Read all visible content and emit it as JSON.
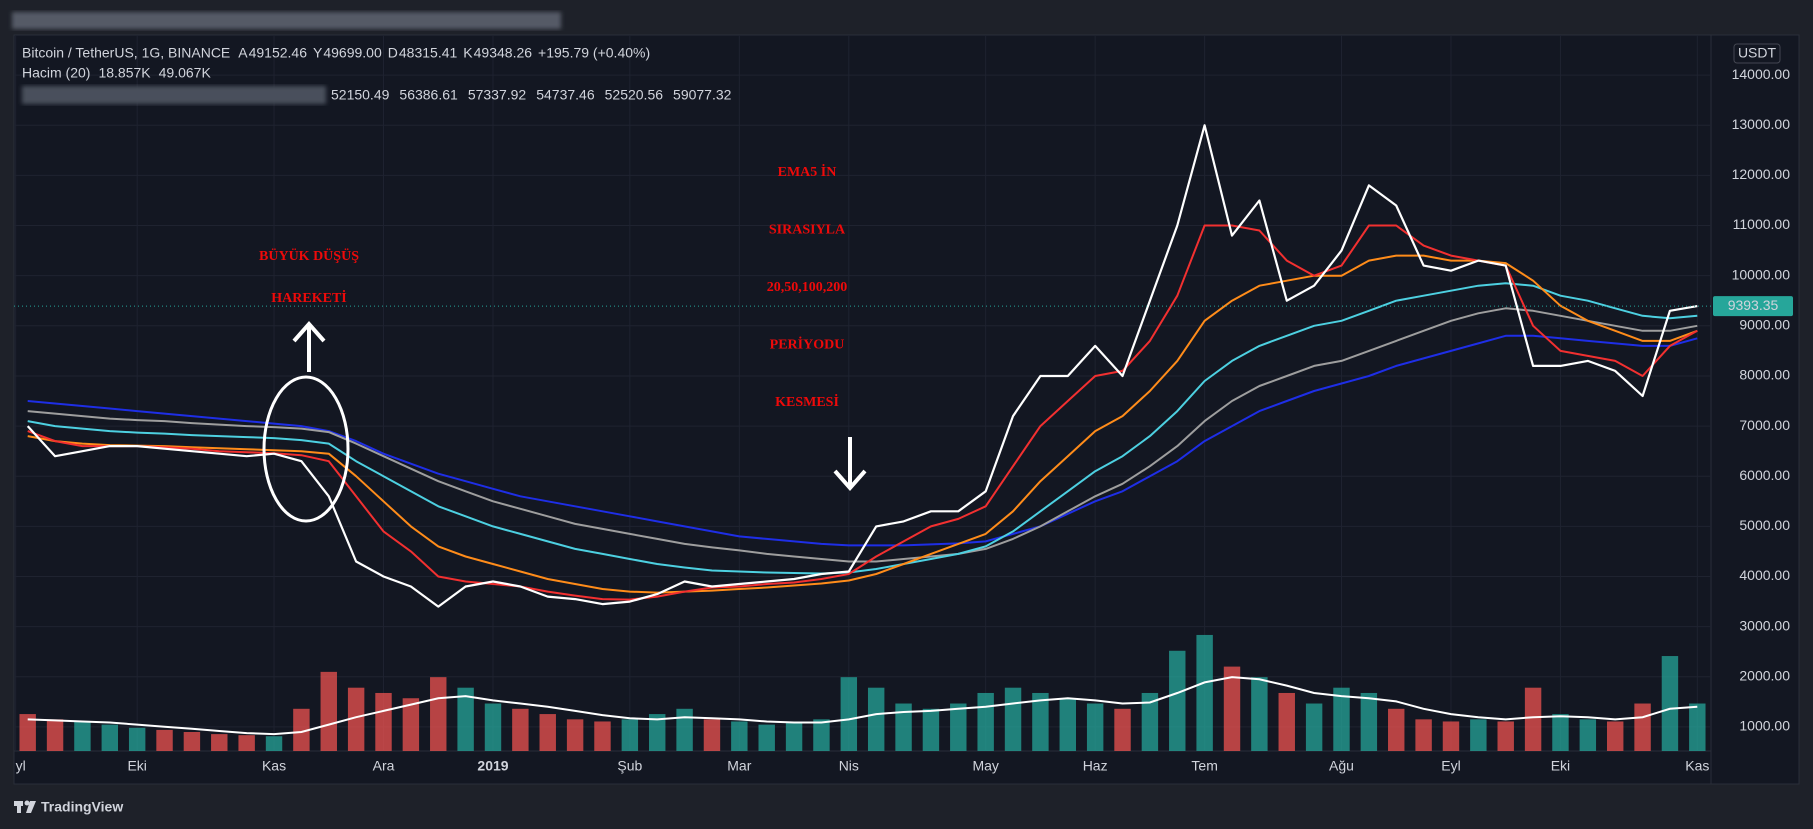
{
  "header": {
    "symbol": "Bitcoin / TetherUS, 1G, BINANCE",
    "ohlc": [
      {
        "label": "A",
        "value": "49152.46"
      },
      {
        "label": "Y",
        "value": "49699.00"
      },
      {
        "label": "D",
        "value": "48315.41"
      },
      {
        "label": "K",
        "value": "49348.26"
      }
    ],
    "change": "+195.79 (+0.40%)",
    "volume_label": "Hacim (20)",
    "volume_values": [
      "18.857K",
      "49.067K"
    ],
    "ma_values": [
      "52150.49",
      "56386.61",
      "57337.92",
      "54737.46",
      "52520.56",
      "59077.32"
    ]
  },
  "chart_data": {
    "type": "line",
    "currency": "USDT",
    "categories": [
      "yl",
      null,
      null,
      null,
      "Eki",
      null,
      null,
      null,
      null,
      "Kas",
      null,
      null,
      null,
      "Ara",
      null,
      null,
      null,
      "2019",
      null,
      null,
      null,
      null,
      "Şub",
      null,
      null,
      null,
      "Mar",
      null,
      null,
      null,
      "Nis",
      null,
      null,
      null,
      null,
      "May",
      null,
      null,
      null,
      "Haz",
      null,
      null,
      null,
      "Tem",
      null,
      null,
      null,
      null,
      "Ağu",
      null,
      null,
      null,
      "Eyl",
      null,
      null,
      null,
      "Eki",
      null,
      null,
      null,
      null,
      "Kas"
    ],
    "series": [
      {
        "color": "#ffffff",
        "values": [
          7000,
          6400,
          6500,
          6600,
          6600,
          6550,
          6500,
          6450,
          6400,
          6450,
          6300,
          5600,
          4300,
          4000,
          3800,
          3400,
          3800,
          3900,
          3800,
          3600,
          3550,
          3450,
          3500,
          3650,
          3900,
          3800,
          3850,
          3900,
          3950,
          4050,
          4100,
          5000,
          5100,
          5300,
          5300,
          5700,
          7200,
          8000,
          8000,
          8600,
          8000,
          9500,
          11000,
          13000,
          10800,
          11500,
          9500,
          9800,
          10500,
          11800,
          11400,
          10200,
          10100,
          10300,
          10200,
          8200,
          8200,
          8300,
          8100,
          7600,
          9300,
          9393.35
        ]
      },
      {
        "color": "#f23030",
        "values": [
          6900,
          6700,
          6600,
          6600,
          6600,
          6580,
          6550,
          6500,
          6480,
          6460,
          6420,
          6300,
          5600,
          4900,
          4500,
          4000,
          3900,
          3850,
          3800,
          3700,
          3620,
          3550,
          3540,
          3600,
          3700,
          3780,
          3800,
          3850,
          3880,
          3950,
          4050,
          4400,
          4700,
          5000,
          5150,
          5400,
          6200,
          7000,
          7500,
          8000,
          8100,
          8700,
          9600,
          11000,
          11000,
          10900,
          10300,
          10000,
          10200,
          11000,
          11000,
          10600,
          10400,
          10300,
          10200,
          9000,
          8500,
          8400,
          8300,
          8000,
          8600,
          8900
        ]
      },
      {
        "color": "#ff8c1a",
        "values": [
          6800,
          6700,
          6650,
          6620,
          6610,
          6600,
          6580,
          6560,
          6540,
          6520,
          6500,
          6450,
          6000,
          5500,
          5000,
          4600,
          4400,
          4250,
          4100,
          3950,
          3850,
          3750,
          3700,
          3680,
          3700,
          3720,
          3750,
          3780,
          3820,
          3860,
          3920,
          4050,
          4250,
          4450,
          4650,
          4850,
          5300,
          5900,
          6400,
          6900,
          7200,
          7700,
          8300,
          9100,
          9500,
          9800,
          9900,
          10000,
          10000,
          10300,
          10400,
          10400,
          10300,
          10300,
          10250,
          9900,
          9400,
          9100,
          8900,
          8700,
          8700,
          8900
        ]
      },
      {
        "color": "#4dd0e1",
        "values": [
          7100,
          7000,
          6950,
          6900,
          6870,
          6850,
          6820,
          6800,
          6780,
          6760,
          6720,
          6650,
          6300,
          6000,
          5700,
          5400,
          5200,
          5000,
          4850,
          4700,
          4550,
          4450,
          4350,
          4250,
          4180,
          4120,
          4100,
          4080,
          4070,
          4060,
          4080,
          4150,
          4250,
          4350,
          4450,
          4600,
          4900,
          5300,
          5700,
          6100,
          6400,
          6800,
          7300,
          7900,
          8300,
          8600,
          8800,
          9000,
          9100,
          9300,
          9500,
          9600,
          9700,
          9800,
          9850,
          9800,
          9600,
          9500,
          9350,
          9200,
          9150,
          9200
        ]
      },
      {
        "color": "#9e9e9e",
        "values": [
          7300,
          7250,
          7200,
          7150,
          7120,
          7100,
          7060,
          7030,
          7000,
          6980,
          6950,
          6880,
          6650,
          6400,
          6150,
          5900,
          5700,
          5500,
          5350,
          5200,
          5050,
          4950,
          4850,
          4750,
          4650,
          4580,
          4520,
          4450,
          4400,
          4350,
          4300,
          4300,
          4350,
          4400,
          4450,
          4550,
          4750,
          5000,
          5300,
          5600,
          5850,
          6200,
          6600,
          7100,
          7500,
          7800,
          8000,
          8200,
          8300,
          8500,
          8700,
          8900,
          9100,
          9250,
          9350,
          9300,
          9200,
          9100,
          9000,
          8900,
          8900,
          9000
        ]
      },
      {
        "color": "#1e2ee6",
        "values": [
          7500,
          7450,
          7400,
          7350,
          7300,
          7250,
          7200,
          7150,
          7100,
          7050,
          7000,
          6900,
          6700,
          6450,
          6250,
          6050,
          5900,
          5750,
          5600,
          5500,
          5400,
          5300,
          5200,
          5100,
          5000,
          4900,
          4800,
          4750,
          4700,
          4650,
          4620,
          4620,
          4620,
          4640,
          4660,
          4700,
          4850,
          5000,
          5250,
          5500,
          5700,
          6000,
          6300,
          6700,
          7000,
          7300,
          7500,
          7700,
          7850,
          8000,
          8200,
          8350,
          8500,
          8650,
          8800,
          8800,
          8750,
          8700,
          8650,
          8600,
          8600,
          8750
        ]
      }
    ],
    "volume": {
      "up_color": "#26a69a",
      "down_color": "#ef5350",
      "ma_color": "#ffffff",
      "ylim": [
        0,
        200
      ],
      "values": [
        35,
        30,
        28,
        25,
        22,
        20,
        18,
        16,
        15,
        14,
        40,
        75,
        60,
        55,
        50,
        70,
        60,
        45,
        40,
        35,
        30,
        28,
        30,
        35,
        40,
        30,
        28,
        25,
        27,
        30,
        70,
        60,
        45,
        40,
        45,
        55,
        60,
        55,
        50,
        45,
        40,
        55,
        95,
        110,
        80,
        70,
        55,
        45,
        60,
        55,
        40,
        30,
        28,
        30,
        28,
        60,
        35,
        30,
        28,
        45,
        90,
        45
      ],
      "ma": [
        30,
        29,
        28,
        27,
        25,
        23,
        21,
        19,
        17,
        16,
        18,
        25,
        32,
        38,
        44,
        50,
        52,
        48,
        45,
        42,
        38,
        34,
        31,
        30,
        32,
        31,
        30,
        28,
        27,
        27,
        30,
        35,
        37,
        38,
        40,
        42,
        45,
        48,
        50,
        48,
        45,
        46,
        55,
        65,
        70,
        68,
        62,
        55,
        52,
        50,
        47,
        40,
        35,
        32,
        30,
        32,
        33,
        32,
        30,
        32,
        40,
        42
      ]
    },
    "ylim": [
      520,
      14800
    ],
    "yticks": [
      {
        "value": 1000,
        "label": "1000.00"
      },
      {
        "value": 2000,
        "label": "2000.00"
      },
      {
        "value": 3000,
        "label": "3000.00"
      },
      {
        "value": 4000,
        "label": "4000.00"
      },
      {
        "value": 5000,
        "label": "5000.00"
      },
      {
        "value": 6000,
        "label": "6000.00"
      },
      {
        "value": 7000,
        "label": "7000.00"
      },
      {
        "value": 8000,
        "label": "8000.00"
      },
      {
        "value": 9000,
        "label": "9000.00"
      },
      {
        "value": 10000,
        "label": "10000.00"
      },
      {
        "value": 11000,
        "label": "11000.00"
      },
      {
        "value": 12000,
        "label": "12000.00"
      },
      {
        "value": 13000,
        "label": "13000.00"
      },
      {
        "value": 14000,
        "label": "14000.00"
      }
    ],
    "price_tag": {
      "value": 9393.35,
      "label": "9393.35",
      "color": "#26a69a"
    },
    "grid": true
  },
  "annotations": [
    {
      "lines": [
        "BÜYÜK DÜŞÜŞ",
        "HAREKETİ"
      ]
    },
    {
      "lines": [
        "EMA5 İN",
        "SIRASIYLA",
        "20,50,100,200",
        "PERİYODU",
        "KESMESİ"
      ]
    }
  ],
  "footer": "TradingView"
}
